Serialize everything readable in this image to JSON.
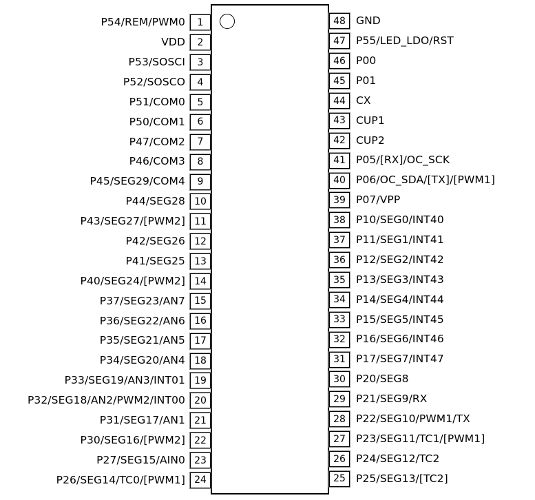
{
  "diagram": {
    "type": "ic-pinout",
    "package": "48-pin dual-in-line outline",
    "pin1_indicator": "circle-icon",
    "colors": {
      "background": "#ffffff",
      "line": "#000000",
      "text": "#000000",
      "pin_box_outer_fringe": "#8f8f8f"
    }
  },
  "pins": {
    "left": [
      {
        "number": "1",
        "label": "P54/REM/PWM0"
      },
      {
        "number": "2",
        "label": "VDD"
      },
      {
        "number": "3",
        "label": "P53/SOSCI"
      },
      {
        "number": "4",
        "label": "P52/SOSCO"
      },
      {
        "number": "5",
        "label": "P51/COM0"
      },
      {
        "number": "6",
        "label": "P50/COM1"
      },
      {
        "number": "7",
        "label": "P47/COM2"
      },
      {
        "number": "8",
        "label": "P46/COM3"
      },
      {
        "number": "9",
        "label": "P45/SEG29/COM4"
      },
      {
        "number": "10",
        "label": "P44/SEG28"
      },
      {
        "number": "11",
        "label": "P43/SEG27/[PWM2]"
      },
      {
        "number": "12",
        "label": "P42/SEG26"
      },
      {
        "number": "13",
        "label": "P41/SEG25"
      },
      {
        "number": "14",
        "label": "P40/SEG24/[PWM2]"
      },
      {
        "number": "15",
        "label": "P37/SEG23/AN7"
      },
      {
        "number": "16",
        "label": "P36/SEG22/AN6"
      },
      {
        "number": "17",
        "label": "P35/SEG21/AN5"
      },
      {
        "number": "18",
        "label": "P34/SEG20/AN4"
      },
      {
        "number": "19",
        "label": "P33/SEG19/AN3/INT01"
      },
      {
        "number": "20",
        "label": "P32/SEG18/AN2/PWM2/INT00"
      },
      {
        "number": "21",
        "label": "P31/SEG17/AN1"
      },
      {
        "number": "22",
        "label": "P30/SEG16/[PWM2]"
      },
      {
        "number": "23",
        "label": "P27/SEG15/AIN0"
      },
      {
        "number": "24",
        "label": "P26/SEG14/TC0/[PWM1]"
      }
    ],
    "right": [
      {
        "number": "48",
        "label": "GND"
      },
      {
        "number": "47",
        "label": "P55/LED_LDO/RST"
      },
      {
        "number": "46",
        "label": "P00"
      },
      {
        "number": "45",
        "label": "P01"
      },
      {
        "number": "44",
        "label": "CX"
      },
      {
        "number": "43",
        "label": "CUP1"
      },
      {
        "number": "42",
        "label": "CUP2"
      },
      {
        "number": "41",
        "label": "P05/[RX]/OC_SCK"
      },
      {
        "number": "40",
        "label": "P06/OC_SDA/[TX]/[PWM1]"
      },
      {
        "number": "39",
        "label": "P07/VPP"
      },
      {
        "number": "38",
        "label": "P10/SEG0/INT40"
      },
      {
        "number": "37",
        "label": "P11/SEG1/INT41"
      },
      {
        "number": "36",
        "label": "P12/SEG2/INT42"
      },
      {
        "number": "35",
        "label": "P13/SEG3/INT43"
      },
      {
        "number": "34",
        "label": "P14/SEG4/INT44"
      },
      {
        "number": "33",
        "label": "P15/SEG5/INT45"
      },
      {
        "number": "32",
        "label": "P16/SEG6/INT46"
      },
      {
        "number": "31",
        "label": "P17/SEG7/INT47"
      },
      {
        "number": "30",
        "label": "P20/SEG8"
      },
      {
        "number": "29",
        "label": "P21/SEG9/RX"
      },
      {
        "number": "28",
        "label": "P22/SEG10/PWM1/TX"
      },
      {
        "number": "27",
        "label": "P23/SEG11/TC1/[PWM1]"
      },
      {
        "number": "26",
        "label": "P24/SEG12/TC2"
      },
      {
        "number": "25",
        "label": "P25/SEG13/[TC2]"
      }
    ]
  }
}
